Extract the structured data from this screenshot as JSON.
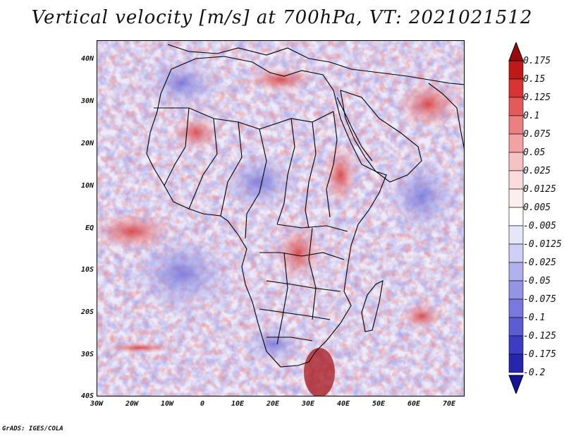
{
  "title": "Vertical velocity [m/s] at 700hPa, VT: 2021021512",
  "credit": "GrADS: IGES/COLA",
  "map": {
    "latitude_labels": [
      "40N",
      "30N",
      "20N",
      "10N",
      "EQ",
      "10S",
      "20S",
      "30S",
      "40S"
    ],
    "longitude_labels": [
      "30W",
      "20W",
      "10W",
      "0",
      "10E",
      "20E",
      "30E",
      "40E",
      "50E",
      "60E",
      "70E"
    ],
    "lat_range": [
      -40,
      45
    ],
    "lon_range": [
      -30,
      75
    ],
    "field_palette": "blue-white-red diverging (ascent blue, descent red)",
    "boundaries": "country borders, black"
  },
  "colorbar": {
    "levels": [
      "0.175",
      "0.15",
      "0.125",
      "0.1",
      "0.075",
      "0.05",
      "0.025",
      "0.0125",
      "0.005",
      "-0.005",
      "-0.0125",
      "-0.025",
      "-0.05",
      "-0.075",
      "-0.1",
      "-0.125",
      "-0.175",
      "-0.2"
    ],
    "colors": [
      "#9b0a0a",
      "#c01818",
      "#d93434",
      "#e45a5a",
      "#ec8080",
      "#f2a2a2",
      "#f7c2c2",
      "#fbdcdc",
      "#fdeeee",
      "#ffffff",
      "#e6e6fa",
      "#cfcff5",
      "#b0b0ee",
      "#9494e6",
      "#7878de",
      "#5c5cd2",
      "#3d3dc4",
      "#2626ad",
      "#141499"
    ]
  }
}
